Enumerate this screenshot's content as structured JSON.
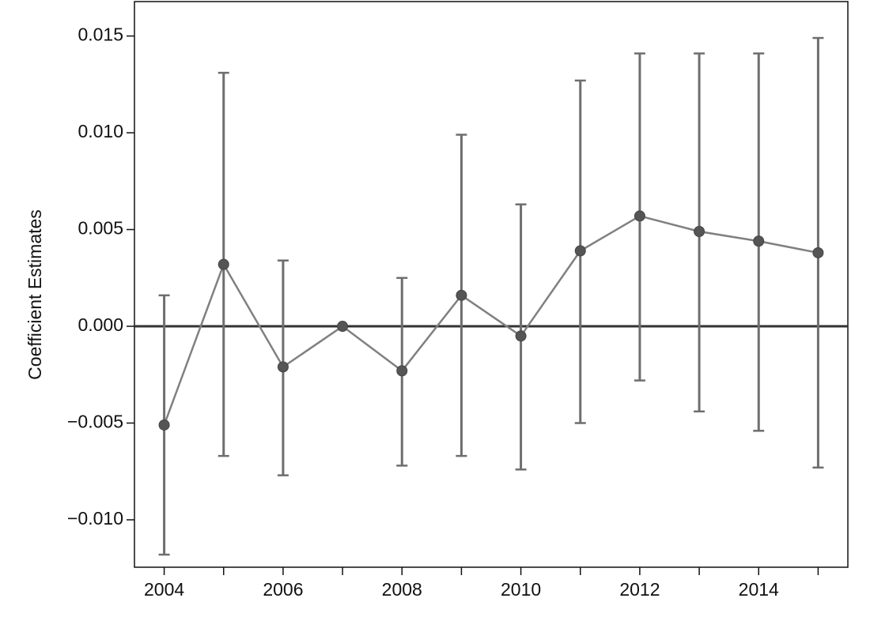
{
  "chart_data": {
    "type": "errorbar",
    "y_label": "Coefficient Estimates",
    "x": [
      2004,
      2005,
      2006,
      2007,
      2008,
      2009,
      2010,
      2011,
      2012,
      2013,
      2014,
      2015
    ],
    "series": [
      {
        "color": "#6e6e6e",
        "values": [
          -0.0051,
          0.0032,
          -0.0021,
          0.0,
          -0.0023,
          0.0016,
          -0.0005,
          0.0039,
          0.0057,
          0.0049,
          0.0044,
          0.0038
        ],
        "lower": [
          -0.0118,
          -0.0067,
          -0.0077,
          null,
          -0.0072,
          -0.0067,
          -0.0074,
          -0.005,
          -0.0028,
          -0.0044,
          -0.0054,
          -0.0073
        ],
        "upper": [
          0.0016,
          0.0131,
          0.0034,
          null,
          0.0025,
          0.0099,
          0.0063,
          0.0127,
          0.0141,
          0.0141,
          0.0141,
          0.0149
        ]
      }
    ],
    "reference_line": 0,
    "xlim": [
      2003.5,
      2015.5
    ],
    "ylim": [
      -0.01245,
      0.01678
    ],
    "xticks": [
      2004,
      2006,
      2008,
      2010,
      2012,
      2014
    ],
    "xminor_ticks": [
      2005,
      2007,
      2009,
      2011,
      2013,
      2015
    ],
    "yticks": [
      {
        "value": -0.01,
        "label": "−0.010"
      },
      {
        "value": -0.005,
        "label": "−0.005"
      },
      {
        "value": 0.0,
        "label": "0.000"
      },
      {
        "value": 0.005,
        "label": "0.005"
      },
      {
        "value": 0.01,
        "label": "0.010"
      },
      {
        "value": 0.015,
        "label": "0.015"
      }
    ]
  }
}
